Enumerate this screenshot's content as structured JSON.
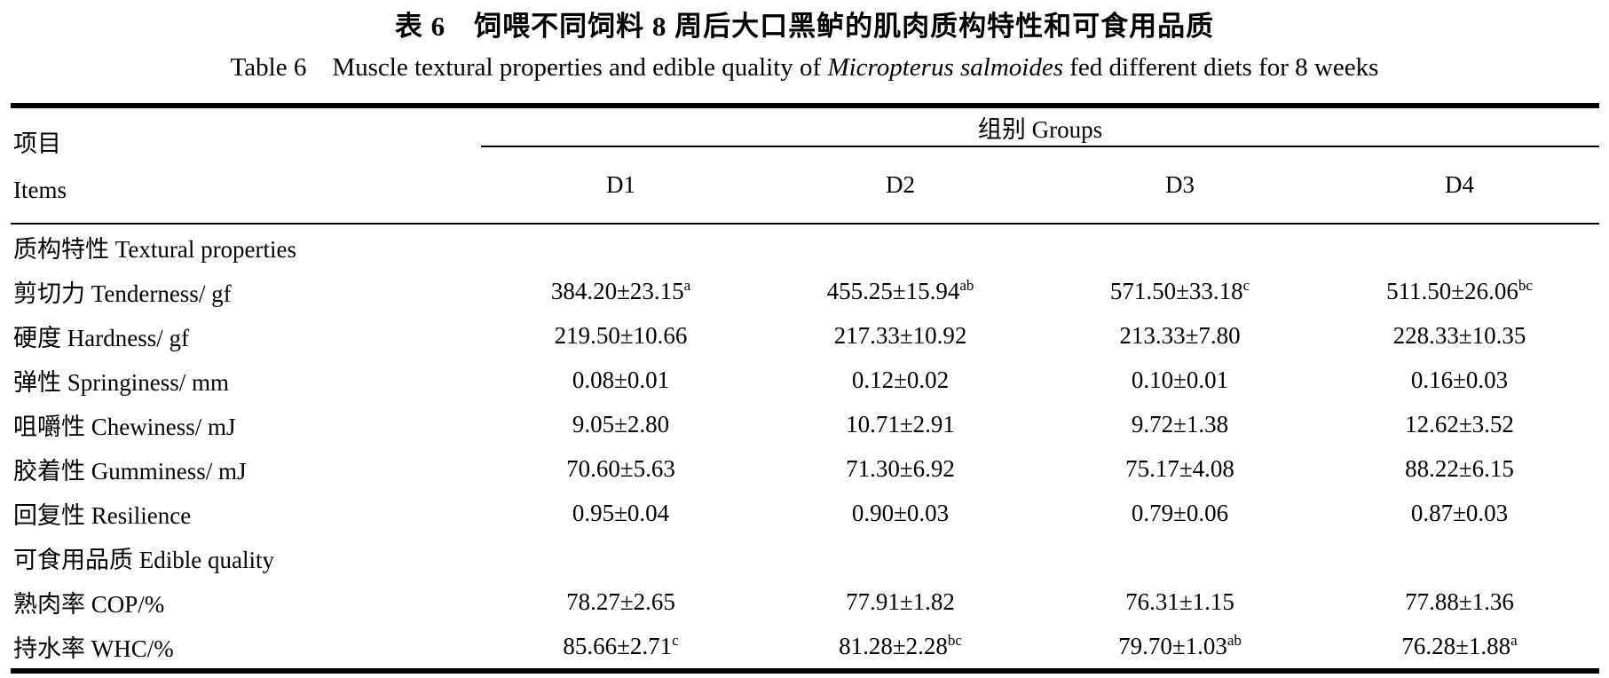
{
  "titles": {
    "zh": "表 6　饲喂不同饲料 8 周后大口黑鲈的肌肉质构特性和可食用品质",
    "en_prefix": "Table 6　Muscle textural properties and edible quality of ",
    "en_species": "Micropterus salmoides",
    "en_suffix": " fed different diets for 8 weeks"
  },
  "table": {
    "items_header_zh": "项目",
    "items_header_en": "Items",
    "groups_header": "组别 Groups",
    "columns": [
      "D1",
      "D2",
      "D3",
      "D4"
    ],
    "rows": [
      {
        "label": "质构特性 Textural properties",
        "section": true,
        "values": []
      },
      {
        "label": "剪切力 Tenderness/ gf",
        "values": [
          {
            "v": "384.20±23.15",
            "sup": "a"
          },
          {
            "v": "455.25±15.94",
            "sup": "ab"
          },
          {
            "v": "571.50±33.18",
            "sup": "c"
          },
          {
            "v": "511.50±26.06",
            "sup": "bc"
          }
        ]
      },
      {
        "label": "硬度 Hardness/ gf",
        "values": [
          {
            "v": "219.50±10.66",
            "sup": ""
          },
          {
            "v": "217.33±10.92",
            "sup": ""
          },
          {
            "v": "213.33±7.80",
            "sup": ""
          },
          {
            "v": "228.33±10.35",
            "sup": ""
          }
        ]
      },
      {
        "label": "弹性 Springiness/ mm",
        "values": [
          {
            "v": "0.08±0.01",
            "sup": ""
          },
          {
            "v": "0.12±0.02",
            "sup": ""
          },
          {
            "v": "0.10±0.01",
            "sup": ""
          },
          {
            "v": "0.16±0.03",
            "sup": ""
          }
        ]
      },
      {
        "label": "咀嚼性 Chewiness/ mJ",
        "values": [
          {
            "v": "9.05±2.80",
            "sup": ""
          },
          {
            "v": "10.71±2.91",
            "sup": ""
          },
          {
            "v": "9.72±1.38",
            "sup": ""
          },
          {
            "v": "12.62±3.52",
            "sup": ""
          }
        ]
      },
      {
        "label": "胶着性 Gumminess/ mJ",
        "values": [
          {
            "v": "70.60±5.63",
            "sup": ""
          },
          {
            "v": "71.30±6.92",
            "sup": ""
          },
          {
            "v": "75.17±4.08",
            "sup": ""
          },
          {
            "v": "88.22±6.15",
            "sup": ""
          }
        ]
      },
      {
        "label": "回复性 Resilience",
        "values": [
          {
            "v": "0.95±0.04",
            "sup": ""
          },
          {
            "v": "0.90±0.03",
            "sup": ""
          },
          {
            "v": "0.79±0.06",
            "sup": ""
          },
          {
            "v": "0.87±0.03",
            "sup": ""
          }
        ]
      },
      {
        "label": "可食用品质 Edible quality",
        "section": true,
        "values": []
      },
      {
        "label": "熟肉率 COP/%",
        "values": [
          {
            "v": "78.27±2.65",
            "sup": ""
          },
          {
            "v": "77.91±1.82",
            "sup": ""
          },
          {
            "v": "76.31±1.15",
            "sup": ""
          },
          {
            "v": "77.88±1.36",
            "sup": ""
          }
        ]
      },
      {
        "label": "持水率 WHC/%",
        "values": [
          {
            "v": "85.66±2.71",
            "sup": "c"
          },
          {
            "v": "81.28±2.28",
            "sup": "bc"
          },
          {
            "v": "79.70±1.03",
            "sup": "ab"
          },
          {
            "v": "76.28±1.88",
            "sup": "a"
          }
        ]
      }
    ]
  }
}
